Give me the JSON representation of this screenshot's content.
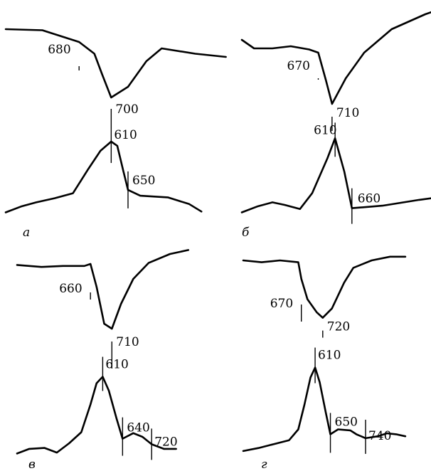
{
  "chart_data": [
    {
      "type": "line",
      "panel": "а",
      "upper": {
        "points": [
          [
            0,
            0.78
          ],
          [
            0.12,
            0.77
          ],
          [
            0.24,
            0.66
          ],
          [
            0.29,
            0.55
          ],
          [
            0.315,
            0.36
          ],
          [
            0.345,
            0.14
          ],
          [
            0.4,
            0.24
          ],
          [
            0.46,
            0.48
          ],
          [
            0.51,
            0.6
          ],
          [
            0.62,
            0.55
          ],
          [
            0.72,
            0.52
          ]
        ],
        "labels": [
          {
            "text": "680",
            "x": 0.24
          },
          {
            "text": "700",
            "x": 0.345
          }
        ]
      },
      "lower": {
        "points": [
          [
            0,
            0.03
          ],
          [
            0.05,
            0.1
          ],
          [
            0.1,
            0.15
          ],
          [
            0.16,
            0.2
          ],
          [
            0.22,
            0.26
          ],
          [
            0.27,
            0.55
          ],
          [
            0.31,
            0.77
          ],
          [
            0.345,
            0.88
          ],
          [
            0.365,
            0.83
          ],
          [
            0.385,
            0.52
          ],
          [
            0.4,
            0.3
          ],
          [
            0.44,
            0.23
          ],
          [
            0.53,
            0.21
          ],
          [
            0.6,
            0.13
          ],
          [
            0.64,
            0.04
          ]
        ],
        "labels": [
          {
            "text": "610",
            "x": 0.345
          },
          {
            "text": "650",
            "x": 0.4
          }
        ]
      }
    },
    {
      "type": "line",
      "panel": "б",
      "upper": {
        "points": [
          [
            0,
            0.68
          ],
          [
            0.04,
            0.6
          ],
          [
            0.1,
            0.6
          ],
          [
            0.16,
            0.62
          ],
          [
            0.22,
            0.59
          ],
          [
            0.25,
            0.56
          ],
          [
            0.275,
            0.3
          ],
          [
            0.295,
            0.08
          ],
          [
            0.34,
            0.32
          ],
          [
            0.4,
            0.56
          ],
          [
            0.49,
            0.78
          ],
          [
            0.6,
            0.92
          ],
          [
            0.62,
            0.94
          ]
        ],
        "labels": [
          {
            "text": "670",
            "x": 0.25
          },
          {
            "text": "710",
            "x": 0.295
          }
        ]
      },
      "lower": {
        "points": [
          [
            0,
            0.03
          ],
          [
            0.05,
            0.1
          ],
          [
            0.1,
            0.15
          ],
          [
            0.14,
            0.12
          ],
          [
            0.19,
            0.07
          ],
          [
            0.23,
            0.26
          ],
          [
            0.28,
            0.68
          ],
          [
            0.305,
            0.92
          ],
          [
            0.335,
            0.52
          ],
          [
            0.36,
            0.08
          ],
          [
            0.46,
            0.11
          ],
          [
            0.58,
            0.18
          ],
          [
            0.62,
            0.2
          ]
        ],
        "labels": [
          {
            "text": "610",
            "x": 0.305
          },
          {
            "text": "660",
            "x": 0.36
          }
        ]
      }
    },
    {
      "type": "line",
      "panel": "в",
      "upper": {
        "points": [
          [
            0,
            0.84
          ],
          [
            0.08,
            0.82
          ],
          [
            0.15,
            0.83
          ],
          [
            0.22,
            0.83
          ],
          [
            0.24,
            0.85
          ],
          [
            0.26,
            0.62
          ],
          [
            0.285,
            0.25
          ],
          [
            0.31,
            0.2
          ],
          [
            0.34,
            0.45
          ],
          [
            0.38,
            0.7
          ],
          [
            0.43,
            0.86
          ],
          [
            0.5,
            0.95
          ],
          [
            0.56,
            0.99
          ]
        ],
        "labels": [
          {
            "text": "660",
            "x": 0.24
          },
          {
            "text": "710",
            "x": 0.31
          }
        ]
      },
      "lower": {
        "points": [
          [
            0,
            0.02
          ],
          [
            0.04,
            0.07
          ],
          [
            0.09,
            0.08
          ],
          [
            0.13,
            0.03
          ],
          [
            0.17,
            0.13
          ],
          [
            0.21,
            0.25
          ],
          [
            0.24,
            0.55
          ],
          [
            0.26,
            0.78
          ],
          [
            0.28,
            0.85
          ],
          [
            0.3,
            0.7
          ],
          [
            0.325,
            0.4
          ],
          [
            0.345,
            0.18
          ],
          [
            0.38,
            0.24
          ],
          [
            0.41,
            0.2
          ],
          [
            0.44,
            0.12
          ],
          [
            0.48,
            0.07
          ],
          [
            0.52,
            0.07
          ]
        ],
        "labels": [
          {
            "text": "610",
            "x": 0.28
          },
          {
            "text": "640",
            "x": 0.345
          },
          {
            "text": "720",
            "x": 0.44
          }
        ]
      }
    },
    {
      "type": "line",
      "panel": "г",
      "upper": {
        "points": [
          [
            0,
            0.8
          ],
          [
            0.06,
            0.78
          ],
          [
            0.12,
            0.8
          ],
          [
            0.18,
            0.78
          ],
          [
            0.19,
            0.6
          ],
          [
            0.21,
            0.38
          ],
          [
            0.24,
            0.24
          ],
          [
            0.26,
            0.18
          ],
          [
            0.29,
            0.28
          ],
          [
            0.33,
            0.56
          ],
          [
            0.36,
            0.72
          ],
          [
            0.42,
            0.8
          ],
          [
            0.48,
            0.84
          ],
          [
            0.53,
            0.84
          ]
        ],
        "labels": [
          {
            "text": "670",
            "x": 0.19
          },
          {
            "text": "720",
            "x": 0.26
          }
        ]
      },
      "lower": {
        "points": [
          [
            0,
            0.03
          ],
          [
            0.05,
            0.06
          ],
          [
            0.1,
            0.1
          ],
          [
            0.15,
            0.14
          ],
          [
            0.18,
            0.25
          ],
          [
            0.2,
            0.5
          ],
          [
            0.22,
            0.78
          ],
          [
            0.235,
            0.88
          ],
          [
            0.25,
            0.73
          ],
          [
            0.27,
            0.42
          ],
          [
            0.285,
            0.2
          ],
          [
            0.31,
            0.25
          ],
          [
            0.35,
            0.24
          ],
          [
            0.37,
            0.2
          ],
          [
            0.4,
            0.16
          ],
          [
            0.44,
            0.18
          ],
          [
            0.47,
            0.21
          ],
          [
            0.5,
            0.2
          ],
          [
            0.53,
            0.18
          ]
        ],
        "labels": [
          {
            "text": "610",
            "x": 0.235
          },
          {
            "text": "650",
            "x": 0.285
          },
          {
            "text": "740",
            "x": 0.4
          }
        ]
      }
    }
  ]
}
